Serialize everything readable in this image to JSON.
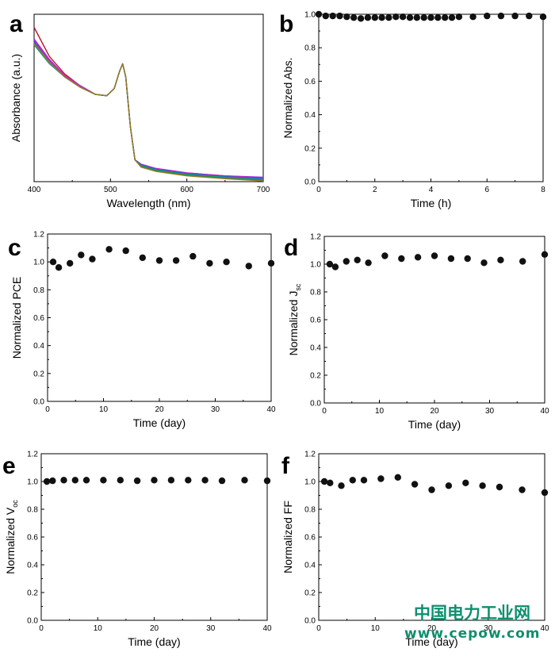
{
  "colors": {
    "marker": "#111111",
    "axis": "#000000",
    "watermark": "#0d8f6e"
  },
  "watermark": {
    "line1": "中国电力工业网",
    "line2": "www.cepow.com"
  },
  "chart_data": [
    {
      "id": "a",
      "panel_label": "a",
      "type": "line",
      "xlabel": "Wavelength (nm)",
      "ylabel": "Absorbance (a.u.)",
      "xlim": [
        400,
        700
      ],
      "xticks": [
        400,
        500,
        600,
        700
      ],
      "yticks": [],
      "ylim": [
        0,
        1.15
      ],
      "series": [
        {
          "color": "#c0102a",
          "x": [
            400,
            420,
            440,
            460,
            480,
            495,
            505,
            512,
            516,
            520,
            526,
            532,
            540,
            560,
            600,
            650,
            700
          ],
          "y": [
            1.06,
            0.86,
            0.74,
            0.66,
            0.6,
            0.59,
            0.64,
            0.76,
            0.81,
            0.72,
            0.38,
            0.15,
            0.11,
            0.08,
            0.05,
            0.03,
            0.01
          ]
        },
        {
          "color": "#8a2be2",
          "x": [
            400,
            420,
            440,
            460,
            480,
            495,
            505,
            512,
            516,
            520,
            526,
            532,
            540,
            560,
            600,
            650,
            700
          ],
          "y": [
            0.98,
            0.84,
            0.73,
            0.66,
            0.6,
            0.59,
            0.64,
            0.76,
            0.81,
            0.72,
            0.38,
            0.15,
            0.12,
            0.09,
            0.06,
            0.04,
            0.03
          ]
        },
        {
          "color": "#d020c0",
          "x": [
            400,
            420,
            440,
            460,
            480,
            495,
            505,
            512,
            516,
            520,
            526,
            532,
            540,
            560,
            600,
            650,
            700
          ],
          "y": [
            0.97,
            0.83,
            0.73,
            0.66,
            0.6,
            0.59,
            0.64,
            0.76,
            0.81,
            0.72,
            0.38,
            0.15,
            0.12,
            0.09,
            0.06,
            0.04,
            0.025
          ]
        },
        {
          "color": "#1f5fd0",
          "x": [
            400,
            420,
            440,
            460,
            480,
            495,
            505,
            512,
            516,
            520,
            526,
            532,
            540,
            560,
            600,
            650,
            700
          ],
          "y": [
            0.96,
            0.82,
            0.72,
            0.65,
            0.6,
            0.59,
            0.64,
            0.76,
            0.81,
            0.72,
            0.38,
            0.15,
            0.115,
            0.085,
            0.055,
            0.035,
            0.02
          ]
        },
        {
          "color": "#1a9a9a",
          "x": [
            400,
            420,
            440,
            460,
            480,
            495,
            505,
            512,
            516,
            520,
            526,
            532,
            540,
            560,
            600,
            650,
            700
          ],
          "y": [
            0.94,
            0.81,
            0.72,
            0.65,
            0.6,
            0.59,
            0.64,
            0.76,
            0.81,
            0.72,
            0.38,
            0.15,
            0.11,
            0.08,
            0.05,
            0.03,
            0.015
          ]
        },
        {
          "color": "#2a8a2a",
          "x": [
            400,
            420,
            440,
            460,
            480,
            495,
            505,
            512,
            516,
            520,
            526,
            532,
            540,
            560,
            600,
            650,
            700
          ],
          "y": [
            0.95,
            0.82,
            0.72,
            0.65,
            0.6,
            0.59,
            0.64,
            0.76,
            0.81,
            0.72,
            0.38,
            0.15,
            0.105,
            0.075,
            0.045,
            0.025,
            0.01
          ]
        },
        {
          "color": "#9a7a2a",
          "x": [
            400,
            420,
            440,
            460,
            480,
            495,
            505,
            512,
            516,
            520,
            526,
            532,
            540,
            560,
            600,
            650,
            700
          ],
          "y": [
            0.95,
            0.82,
            0.72,
            0.65,
            0.6,
            0.59,
            0.64,
            0.76,
            0.81,
            0.72,
            0.38,
            0.15,
            0.1,
            0.07,
            0.04,
            0.02,
            0.005
          ]
        }
      ]
    },
    {
      "id": "b",
      "panel_label": "b",
      "type": "scatter",
      "xlabel": "Time (h)",
      "ylabel": "Normalized Abs.",
      "xlim": [
        0,
        8
      ],
      "ylim": [
        0,
        1.0
      ],
      "xticks": [
        0,
        2,
        4,
        6,
        8
      ],
      "yticks": [
        "0.0",
        "0.2",
        "0.4",
        "0.6",
        "0.8",
        "1.0"
      ],
      "x": [
        0,
        0.25,
        0.5,
        0.75,
        1,
        1.25,
        1.5,
        1.75,
        2,
        2.25,
        2.5,
        2.75,
        3,
        3.25,
        3.5,
        3.75,
        4,
        4.25,
        4.5,
        4.75,
        5,
        5.5,
        6,
        6.5,
        7,
        7.5,
        8
      ],
      "y": [
        1.0,
        0.99,
        0.99,
        0.99,
        0.985,
        0.98,
        0.975,
        0.98,
        0.98,
        0.98,
        0.98,
        0.985,
        0.985,
        0.98,
        0.98,
        0.98,
        0.98,
        0.98,
        0.98,
        0.98,
        0.985,
        0.985,
        0.99,
        0.99,
        0.99,
        0.99,
        0.985
      ]
    },
    {
      "id": "c",
      "panel_label": "c",
      "type": "scatter",
      "xlabel": "Time (day)",
      "ylabel": "Normalized PCE",
      "xlim": [
        0,
        40
      ],
      "ylim": [
        0,
        1.2
      ],
      "xticks": [
        0,
        10,
        20,
        30,
        40
      ],
      "yticks": [
        "0.0",
        "0.2",
        "0.4",
        "0.6",
        "0.8",
        "1.0",
        "1.2"
      ],
      "x": [
        1,
        2,
        4,
        6,
        8,
        11,
        14,
        17,
        20,
        23,
        26,
        29,
        32,
        36,
        40
      ],
      "y": [
        1.0,
        0.96,
        0.99,
        1.05,
        1.02,
        1.09,
        1.08,
        1.03,
        1.01,
        1.01,
        1.04,
        0.99,
        1.0,
        0.97,
        0.99
      ]
    },
    {
      "id": "d",
      "panel_label": "d",
      "type": "scatter",
      "xlabel": "Time (day)",
      "ylabel": "Normalized J",
      "ylabel_sub": "sc",
      "xlim": [
        0,
        40
      ],
      "ylim": [
        0,
        1.2
      ],
      "xticks": [
        0,
        10,
        20,
        30,
        40
      ],
      "yticks": [
        "0.0",
        "0.2",
        "0.4",
        "0.6",
        "0.8",
        "1.0",
        "1.2"
      ],
      "x": [
        1,
        2,
        4,
        6,
        8,
        11,
        14,
        17,
        20,
        23,
        26,
        29,
        32,
        36,
        40
      ],
      "y": [
        1.0,
        0.98,
        1.02,
        1.03,
        1.01,
        1.06,
        1.04,
        1.05,
        1.06,
        1.04,
        1.04,
        1.01,
        1.03,
        1.02,
        1.07
      ]
    },
    {
      "id": "e",
      "panel_label": "e",
      "type": "scatter",
      "xlabel": "Time (day)",
      "ylabel": "Normalized V",
      "ylabel_sub": "oc",
      "xlim": [
        0,
        40
      ],
      "ylim": [
        0,
        1.2
      ],
      "xticks": [
        0,
        10,
        20,
        30,
        40
      ],
      "yticks": [
        "0.0",
        "0.2",
        "0.4",
        "0.6",
        "0.8",
        "1.0",
        "1.2"
      ],
      "x": [
        1,
        2,
        4,
        6,
        8,
        11,
        14,
        17,
        20,
        23,
        26,
        29,
        32,
        36,
        40
      ],
      "y": [
        1.0,
        1.005,
        1.01,
        1.01,
        1.01,
        1.01,
        1.01,
        1.005,
        1.01,
        1.01,
        1.01,
        1.01,
        1.005,
        1.01,
        1.005
      ]
    },
    {
      "id": "f",
      "panel_label": "f",
      "type": "scatter",
      "xlabel": "Time (day)",
      "ylabel": "Normalized FF",
      "xlim": [
        0,
        40
      ],
      "ylim": [
        0,
        1.2
      ],
      "xticks": [
        0,
        10,
        20,
        30,
        40
      ],
      "yticks": [
        "0.0",
        "0.2",
        "0.4",
        "0.6",
        "0.8",
        "1.0",
        "1.2"
      ],
      "x": [
        1,
        2,
        4,
        6,
        8,
        11,
        14,
        17,
        20,
        23,
        26,
        29,
        32,
        36,
        40
      ],
      "y": [
        1.0,
        0.99,
        0.97,
        1.01,
        1.01,
        1.02,
        1.03,
        0.98,
        0.94,
        0.97,
        0.99,
        0.97,
        0.96,
        0.94,
        0.92
      ]
    }
  ]
}
